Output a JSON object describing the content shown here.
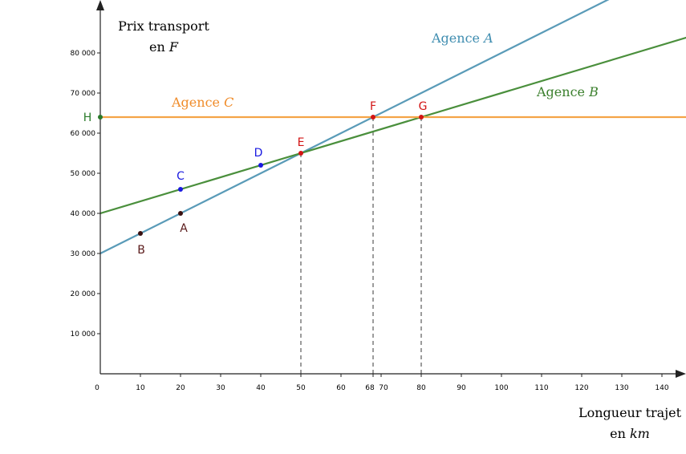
{
  "chart_data": {
    "type": "line",
    "ylabel_line1": "Prix transport",
    "ylabel_line2_prefix": "en ",
    "ylabel_unit": "F",
    "xlabel_line1": "Longueur trajet",
    "xlabel_line2_prefix": "en ",
    "xlabel_unit": "km",
    "xlim": [
      0,
      147
    ],
    "ylim": [
      0,
      93000
    ],
    "x_ticks": [
      {
        "value": 0,
        "label": "0"
      },
      {
        "value": 10,
        "label": "10"
      },
      {
        "value": 20,
        "label": "20"
      },
      {
        "value": 30,
        "label": "30"
      },
      {
        "value": 40,
        "label": "40"
      },
      {
        "value": 50,
        "label": "50",
        "color": "#d21414"
      },
      {
        "value": 60,
        "label": "60"
      },
      {
        "value": 68,
        "label": "68",
        "color": "#d21414"
      },
      {
        "value": 70,
        "label": "70",
        "color": "#1f4fbf"
      },
      {
        "value": 80,
        "label": "80",
        "color": "#d21414"
      },
      {
        "value": 90,
        "label": "90"
      },
      {
        "value": 100,
        "label": "100"
      },
      {
        "value": 110,
        "label": "110"
      },
      {
        "value": 120,
        "label": "120"
      },
      {
        "value": 130,
        "label": "130"
      },
      {
        "value": 140,
        "label": "140"
      }
    ],
    "y_ticks": [
      {
        "value": 10000,
        "label": "10 000"
      },
      {
        "value": 20000,
        "label": "20 000"
      },
      {
        "value": 30000,
        "label": "30 000"
      },
      {
        "value": 40000,
        "label": "40 000"
      },
      {
        "value": 50000,
        "label": "50 000"
      },
      {
        "value": 60000,
        "label": "60 000"
      },
      {
        "value": 70000,
        "label": "70 000"
      },
      {
        "value": 80000,
        "label": "80 000"
      }
    ],
    "series": [
      {
        "name_prefix": "Agence ",
        "name_letter": "A",
        "color": "#5a9bb8",
        "intercept": 30000,
        "slope": 500
      },
      {
        "name_prefix": "Agence ",
        "name_letter": "B",
        "color": "#4a8f3c",
        "intercept": 40000,
        "slope": 300
      },
      {
        "name_prefix": "Agence ",
        "name_letter": "C",
        "color": "#f5a447",
        "intercept": 64000,
        "slope": 0
      }
    ],
    "points": [
      {
        "label": "A",
        "x": 20,
        "y": 40000,
        "color": "#3a1010",
        "label_color": "#5a1a1a"
      },
      {
        "label": "B",
        "x": 10,
        "y": 35000,
        "color": "#3a1010",
        "label_color": "#5a1a1a"
      },
      {
        "label": "C",
        "x": 20,
        "y": 46000,
        "color": "#1a1ae0",
        "label_color": "#1a1ae0"
      },
      {
        "label": "D",
        "x": 40,
        "y": 52000,
        "color": "#1a1ae0",
        "label_color": "#1a1ae0"
      },
      {
        "label": "E",
        "x": 50,
        "y": 55000,
        "color": "#d21414",
        "label_color": "#d21414"
      },
      {
        "label": "F",
        "x": 68,
        "y": 64000,
        "color": "#d21414",
        "label_color": "#d21414"
      },
      {
        "label": "G",
        "x": 80,
        "y": 64000,
        "color": "#d21414",
        "label_color": "#d21414"
      },
      {
        "label": "H",
        "x": 0,
        "y": 64000,
        "color": "#2a7a2a",
        "label_color": "#2a7a2a"
      }
    ],
    "dashed_verticals": [
      50,
      68,
      80
    ]
  }
}
